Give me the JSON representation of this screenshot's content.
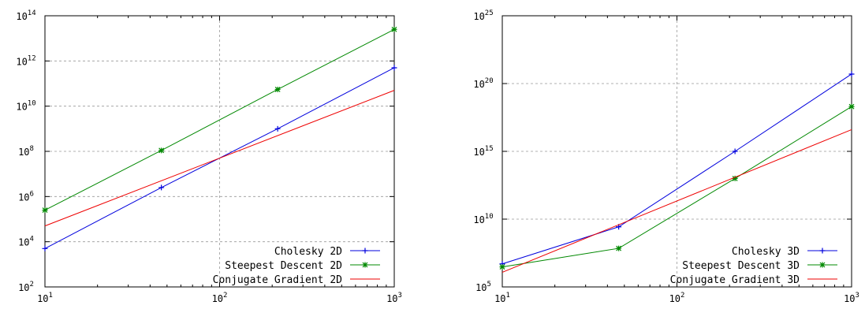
{
  "chart_data": [
    {
      "type": "line",
      "title": "",
      "xlabel": "",
      "ylabel": "",
      "x_scale": "log",
      "y_scale": "log",
      "xlim": [
        10,
        1000
      ],
      "ylim": [
        100,
        100000000000000
      ],
      "x_ticks": [
        {
          "value": 10,
          "base": "10",
          "exp": "1"
        },
        {
          "value": 100,
          "base": "10",
          "exp": "2"
        },
        {
          "value": 1000,
          "base": "10",
          "exp": "3"
        }
      ],
      "y_ticks": [
        {
          "value": 100,
          "base": "10",
          "exp": "2"
        },
        {
          "value": 10000,
          "base": "10",
          "exp": "4"
        },
        {
          "value": 1000000,
          "base": "10",
          "exp": "6"
        },
        {
          "value": 100000000,
          "base": "10",
          "exp": "8"
        },
        {
          "value": 10000000000,
          "base": "10",
          "exp": "10"
        },
        {
          "value": 1000000000000,
          "base": "10",
          "exp": "12"
        },
        {
          "value": 100000000000000,
          "base": "10",
          "exp": "14"
        }
      ],
      "grid": true,
      "legend_position": "bottom-right",
      "series": [
        {
          "name": "Cholesky 2D",
          "color": "#0000dd",
          "marker": "plus",
          "points": [
            [
              10,
              5000
            ],
            [
              46.4,
              2500000
            ],
            [
              215,
              1000000000
            ],
            [
              1000,
              500000000000
            ]
          ]
        },
        {
          "name": "Steepest Descent 2D",
          "color": "#008800",
          "marker": "star",
          "points": [
            [
              10,
              250000
            ],
            [
              46.4,
              110000000
            ],
            [
              215,
              55000000000
            ],
            [
              1000,
              25000000000000
            ]
          ]
        },
        {
          "name": "Conjugate Gradient 2D",
          "color": "#ee0000",
          "marker": "none",
          "points": [
            [
              10,
              50000
            ],
            [
              1000,
              50000000000
            ]
          ]
        }
      ]
    },
    {
      "type": "line",
      "title": "",
      "xlabel": "",
      "ylabel": "",
      "x_scale": "log",
      "y_scale": "log",
      "xlim": [
        10,
        1000
      ],
      "ylim": [
        100000,
        10000000000000000000000000
      ],
      "x_ticks": [
        {
          "value": 10,
          "base": "10",
          "exp": "1"
        },
        {
          "value": 100,
          "base": "10",
          "exp": "2"
        },
        {
          "value": 1000,
          "base": "10",
          "exp": "3"
        }
      ],
      "y_ticks": [
        {
          "value": 100000,
          "base": "10",
          "exp": "5"
        },
        {
          "value": 10000000000,
          "base": "10",
          "exp": "10"
        },
        {
          "value": 1000000000000000,
          "base": "10",
          "exp": "15"
        },
        {
          "value": 100000000000000000000,
          "base": "10",
          "exp": "20"
        },
        {
          "value": 10000000000000000000000000,
          "base": "10",
          "exp": "25"
        }
      ],
      "grid": true,
      "legend_position": "bottom-right",
      "series": [
        {
          "name": "Cholesky 3D",
          "color": "#0000dd",
          "marker": "plus",
          "points": [
            [
              10,
              5000000
            ],
            [
              46.4,
              2700000000
            ],
            [
              215,
              1000000000000000
            ],
            [
              1000,
              500000000000000000000
            ]
          ]
        },
        {
          "name": "Steepest Descent 3D",
          "color": "#008800",
          "marker": "star",
          "points": [
            [
              10,
              3000000
            ],
            [
              46.4,
              70000000
            ],
            [
              215,
              10000000000000
            ],
            [
              1000,
              2000000000000000000
            ]
          ]
        },
        {
          "name": "Conjugate Gradient 3D",
          "color": "#ee0000",
          "marker": "none",
          "points": [
            [
              10,
              1200000
            ],
            [
              1000,
              40000000000000000
            ]
          ]
        }
      ]
    }
  ]
}
